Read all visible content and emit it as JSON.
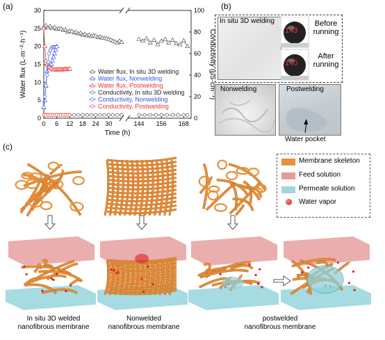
{
  "panel_labels": {
    "a": "(a)",
    "b": "(b)",
    "c": "(c)"
  },
  "chart_data": {
    "type": "line",
    "xlabel": "Time (h)",
    "ylabel_left": "Water flux (L·m⁻²·h⁻¹)",
    "ylabel_right": "Conductivity (μS·cm⁻¹)",
    "x_ticks_left": [
      "0",
      "6",
      "12",
      "18",
      "24",
      "30"
    ],
    "x_ticks_right": [
      "144",
      "156",
      "168"
    ],
    "y_ticks_left": [
      "0",
      "5",
      "10",
      "15",
      "20",
      "25",
      "30"
    ],
    "y_ticks_right": [
      "0",
      "20",
      "40",
      "60",
      "80",
      "100"
    ],
    "ylim_left": [
      0,
      30
    ],
    "ylim_right": [
      0,
      100
    ],
    "series": [
      {
        "name": "Water flux, In situ 3D welding",
        "axis": "left",
        "color": "#555555",
        "marker": "triangle",
        "x": [
          0,
          1,
          2,
          3,
          4,
          5,
          6,
          7,
          8,
          9,
          10,
          11,
          12,
          13,
          14,
          15,
          16,
          17,
          18,
          19,
          20,
          21,
          22,
          23,
          24,
          25,
          26,
          27,
          28,
          29,
          30,
          31,
          32,
          33,
          34,
          35,
          36,
          144,
          146,
          148,
          150,
          152,
          154,
          156,
          158,
          160,
          162,
          164,
          166,
          168,
          170
        ],
        "y": [
          25.5,
          25.8,
          25.2,
          25.6,
          25,
          25.3,
          24.8,
          25,
          24.9,
          24.5,
          24.7,
          24,
          24.3,
          24.2,
          23.8,
          24,
          23.5,
          23.7,
          23.2,
          23.4,
          23,
          23.2,
          22.8,
          23,
          22.9,
          22.5,
          22.7,
          22.4,
          22.3,
          22.2,
          22,
          21.8,
          21.5,
          21.3,
          21,
          21.5,
          21.2,
          22,
          21.5,
          22.2,
          21,
          21.8,
          20.5,
          21.5,
          22,
          21,
          21.8,
          20.8,
          20.5,
          21.6,
          20
        ]
      },
      {
        "name": "Water flux, Nonwelding",
        "axis": "left",
        "color": "#3355ee",
        "marker": "triangle",
        "x": [
          0,
          0.5,
          1,
          1.5,
          2,
          2.5,
          3,
          3.5,
          4,
          4.5,
          5,
          5.5,
          6
        ],
        "y": [
          3,
          5,
          9,
          13,
          15,
          14,
          14.5,
          15,
          16,
          17,
          18,
          19,
          20
        ]
      },
      {
        "name": "Water flux, Postwelding",
        "axis": "left",
        "color": "#ee3333",
        "marker": "triangle",
        "x": [
          0,
          0.5,
          1,
          1.5,
          2,
          2.5,
          3,
          3.5,
          4,
          4.5,
          5,
          5.5,
          6,
          6.5,
          7,
          7.5,
          8,
          8.5,
          9,
          9.5,
          10,
          10.5,
          11,
          11.5,
          12
        ],
        "y": [
          25,
          20,
          16,
          15,
          14.5,
          14.2,
          14,
          13.8,
          13.6,
          13.5,
          13.5,
          13.5,
          13.5,
          13.6,
          13.6,
          13.5,
          13.6,
          13.5,
          13.6,
          13.6,
          13.7,
          13.6,
          13.6,
          13.7,
          13.7
        ]
      },
      {
        "name": "Conductivity, In situ 3D welding",
        "axis": "right",
        "color": "#555555",
        "marker": "circle",
        "x": [
          0,
          2,
          4,
          6,
          8,
          10,
          12,
          14,
          16,
          18,
          20,
          22,
          24,
          26,
          28,
          30,
          32,
          34,
          36,
          144,
          147,
          150,
          153,
          156,
          159,
          162,
          165,
          168,
          170
        ],
        "y": [
          3,
          3,
          3,
          3,
          3,
          3,
          3,
          3,
          3,
          3,
          3,
          3,
          3,
          3,
          3,
          3,
          3,
          3,
          3,
          3,
          3,
          3,
          3,
          3,
          3,
          3,
          3,
          3,
          3
        ]
      },
      {
        "name": "Conductivity, Nonwelding",
        "axis": "right",
        "color": "#3355ee",
        "marker": "circle",
        "x": [
          0,
          0.5,
          1,
          1.5,
          2,
          2.5,
          3,
          3.5,
          4,
          4.5,
          5,
          5.5,
          6
        ],
        "y": [
          10,
          20,
          30,
          40,
          52,
          60,
          63,
          65,
          66,
          66,
          66,
          66,
          66
        ]
      },
      {
        "name": "Conductivity, Postwelding",
        "axis": "right",
        "color": "#ee3333",
        "marker": "circle",
        "x": [
          0,
          1,
          2,
          3,
          4,
          5,
          6,
          7,
          8,
          9,
          10,
          11,
          12
        ],
        "y": [
          3,
          3,
          3,
          3,
          3,
          3,
          3,
          3,
          3,
          3,
          3,
          3,
          3
        ]
      }
    ]
  },
  "panel_b": {
    "insitu_label": "In situ 3D welding",
    "before_value": "143",
    "before_label_1": "Before",
    "before_label_2": "running",
    "after_value": "140",
    "after_label_1": "After",
    "after_label_2": "running",
    "nonwelding_label": "Nonwelding",
    "postwelding_label": "Postwelding",
    "water_pocket_label": "Water pocket"
  },
  "panel_c": {
    "legend": [
      {
        "label": "Membrane skeleton",
        "color": "#e8913a"
      },
      {
        "label": "Feed solution",
        "color": "#e89a9a"
      },
      {
        "label": "Permeate solution",
        "color": "#9ed6dc"
      },
      {
        "label": "Water vapor",
        "color": "#e02020"
      }
    ],
    "caption_1a": "In situ 3D welded",
    "caption_1b": "nanofibrous membrane",
    "caption_2a": "Nonwelded",
    "caption_2b": "nanofibrous membrane",
    "caption_3a": "postwelded",
    "caption_3b": "nanofibrous membrane"
  }
}
